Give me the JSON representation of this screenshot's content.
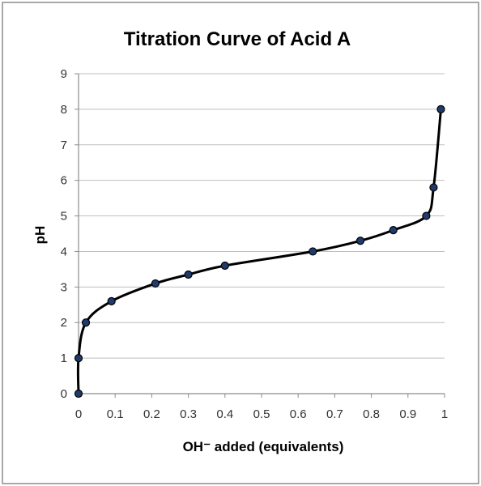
{
  "chart_data": {
    "type": "scatter",
    "title": "Titration Curve of Acid A",
    "xlabel": "OH⁻ added (equivalents)",
    "ylabel": "pH",
    "xlim": [
      0,
      1
    ],
    "ylim": [
      0,
      9
    ],
    "x_ticks": [
      "0",
      "0.1",
      "0.2",
      "0.3",
      "0.4",
      "0.5",
      "0.6",
      "0.7",
      "0.8",
      "0.9",
      "1"
    ],
    "y_ticks": [
      "0",
      "1",
      "2",
      "3",
      "4",
      "5",
      "6",
      "7",
      "8",
      "9"
    ],
    "grid": true,
    "line_color": "#000000",
    "marker_color": "#1f3a6b",
    "series": [
      {
        "x": [
          0,
          0.0,
          0.02,
          0.09,
          0.21,
          0.3,
          0.4,
          0.64,
          0.77,
          0.86,
          0.95,
          0.97,
          0.99
        ],
        "y": [
          0,
          1.0,
          2.0,
          2.6,
          3.1,
          3.35,
          3.6,
          4.0,
          4.3,
          4.6,
          5.0,
          5.8,
          8.0
        ]
      }
    ]
  }
}
